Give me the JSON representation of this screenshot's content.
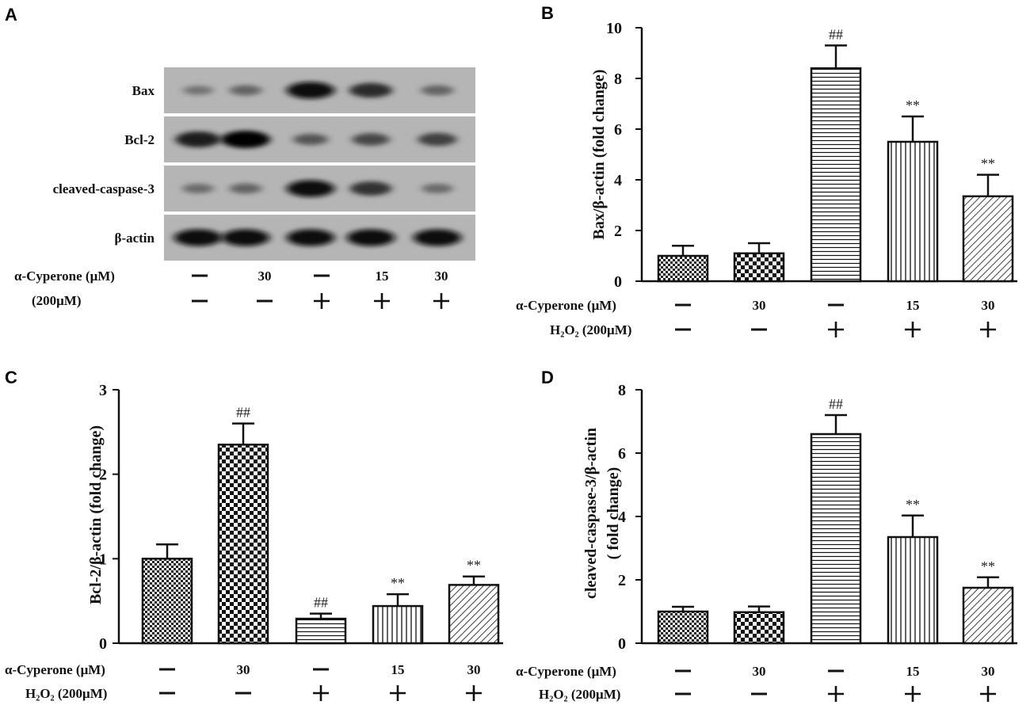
{
  "panels": [
    {
      "letter": "A"
    },
    {
      "letter": "B"
    },
    {
      "letter": "C"
    },
    {
      "letter": "D"
    }
  ],
  "blot": {
    "bands": [
      "Bax",
      "Bcl-2",
      "cleaved-caspase-3",
      "β-actin"
    ],
    "row1_label": "α-Cyperone (μM)",
    "row1_values": [
      "—",
      "30",
      "—",
      "15",
      "30"
    ],
    "row2_label": "(200μM)",
    "row2_values": [
      "—",
      "—",
      "+",
      "+",
      "+"
    ],
    "intensities": {
      "Bax": [
        0.25,
        0.35,
        0.95,
        0.75,
        0.35
      ],
      "Bcl-2": [
        0.85,
        1.0,
        0.45,
        0.55,
        0.6
      ],
      "cleaved-caspase-3": [
        0.3,
        0.35,
        0.95,
        0.7,
        0.3
      ],
      "β-actin": [
        0.95,
        0.95,
        0.95,
        0.95,
        0.95
      ]
    }
  },
  "chart_data": [
    {
      "id": "B",
      "type": "bar",
      "ylabel": "Bax/β-actin (fold change)",
      "ylim": [
        0,
        10
      ],
      "yticks": [
        "0",
        "2",
        "4",
        "6",
        "8",
        "10"
      ],
      "values": [
        1.0,
        1.1,
        8.4,
        5.5,
        3.35
      ],
      "errors": [
        0.4,
        0.4,
        0.9,
        1.0,
        0.85
      ],
      "annotations": [
        "",
        "",
        "##",
        "**",
        "**"
      ],
      "patterns": [
        "checker",
        "checker-large",
        "horizontal",
        "vertical",
        "diagonal"
      ],
      "row1_label": "α-Cyperone (μM)",
      "row1_values": [
        "—",
        "30",
        "—",
        "15",
        "30"
      ],
      "row2_label": "H₂O₂ (200μM)",
      "row2_values": [
        "—",
        "—",
        "+",
        "+",
        "+"
      ]
    },
    {
      "id": "C",
      "type": "bar",
      "ylabel": "Bcl-2/β-actin (fold change)",
      "ylim": [
        0,
        3
      ],
      "yticks": [
        "0",
        "1",
        "2",
        "3"
      ],
      "values": [
        1.0,
        2.35,
        0.29,
        0.44,
        0.69
      ],
      "errors": [
        0.17,
        0.25,
        0.06,
        0.14,
        0.1
      ],
      "annotations": [
        "",
        "##",
        "##",
        "**",
        "**"
      ],
      "patterns": [
        "checker",
        "checker-large",
        "horizontal",
        "vertical",
        "diagonal"
      ],
      "row1_label": "α-Cyperone (μM)",
      "row1_values": [
        "—",
        "30",
        "—",
        "15",
        "30"
      ],
      "row2_label": "H₂O₂ (200μM)",
      "row2_values": [
        "—",
        "—",
        "+",
        "+",
        "+"
      ]
    },
    {
      "id": "D",
      "type": "bar",
      "ylabel": "cleaved-caspase-3/β-actin",
      "ylabel2": "( fold change)",
      "ylim": [
        0,
        8
      ],
      "yticks": [
        "0",
        "2",
        "4",
        "6",
        "8"
      ],
      "values": [
        1.0,
        0.98,
        6.6,
        3.35,
        1.75
      ],
      "errors": [
        0.15,
        0.18,
        0.6,
        0.68,
        0.33
      ],
      "annotations": [
        "",
        "",
        "##",
        "**",
        "**"
      ],
      "patterns": [
        "checker",
        "checker-large",
        "horizontal",
        "vertical",
        "diagonal"
      ],
      "row1_label": "α-Cyperone (μM)",
      "row1_values": [
        "—",
        "30",
        "—",
        "15",
        "30"
      ],
      "row2_label": "H₂O₂ (200μM)",
      "row2_values": [
        "—",
        "—",
        "+",
        "+",
        "+"
      ]
    }
  ]
}
